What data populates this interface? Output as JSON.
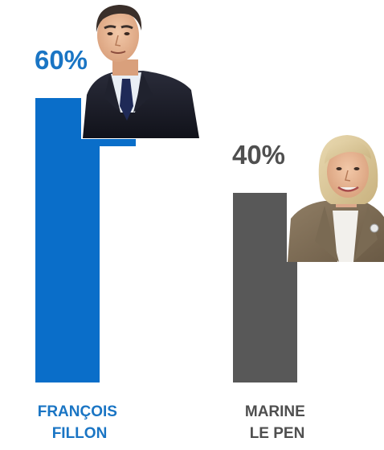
{
  "chart_data": {
    "type": "bar",
    "categories": [
      "FRANÇOIS FILLON",
      "MARINE LE PEN"
    ],
    "category_lines": [
      [
        "FRANÇOIS",
        "FILLON"
      ],
      [
        "MARINE",
        "LE PEN"
      ]
    ],
    "values": [
      60,
      40
    ],
    "value_labels": [
      "60%",
      "40%"
    ],
    "colors": [
      "#0a6ec9",
      "#585858"
    ],
    "label_colors": [
      "#1a75c4",
      "#4f4f4f"
    ],
    "portraits": [
      "francois-fillon-portrait",
      "marine-le-pen-portrait"
    ],
    "ylim": [
      0,
      60
    ],
    "grid": false,
    "title": "",
    "xlabel": "",
    "ylabel": ""
  }
}
